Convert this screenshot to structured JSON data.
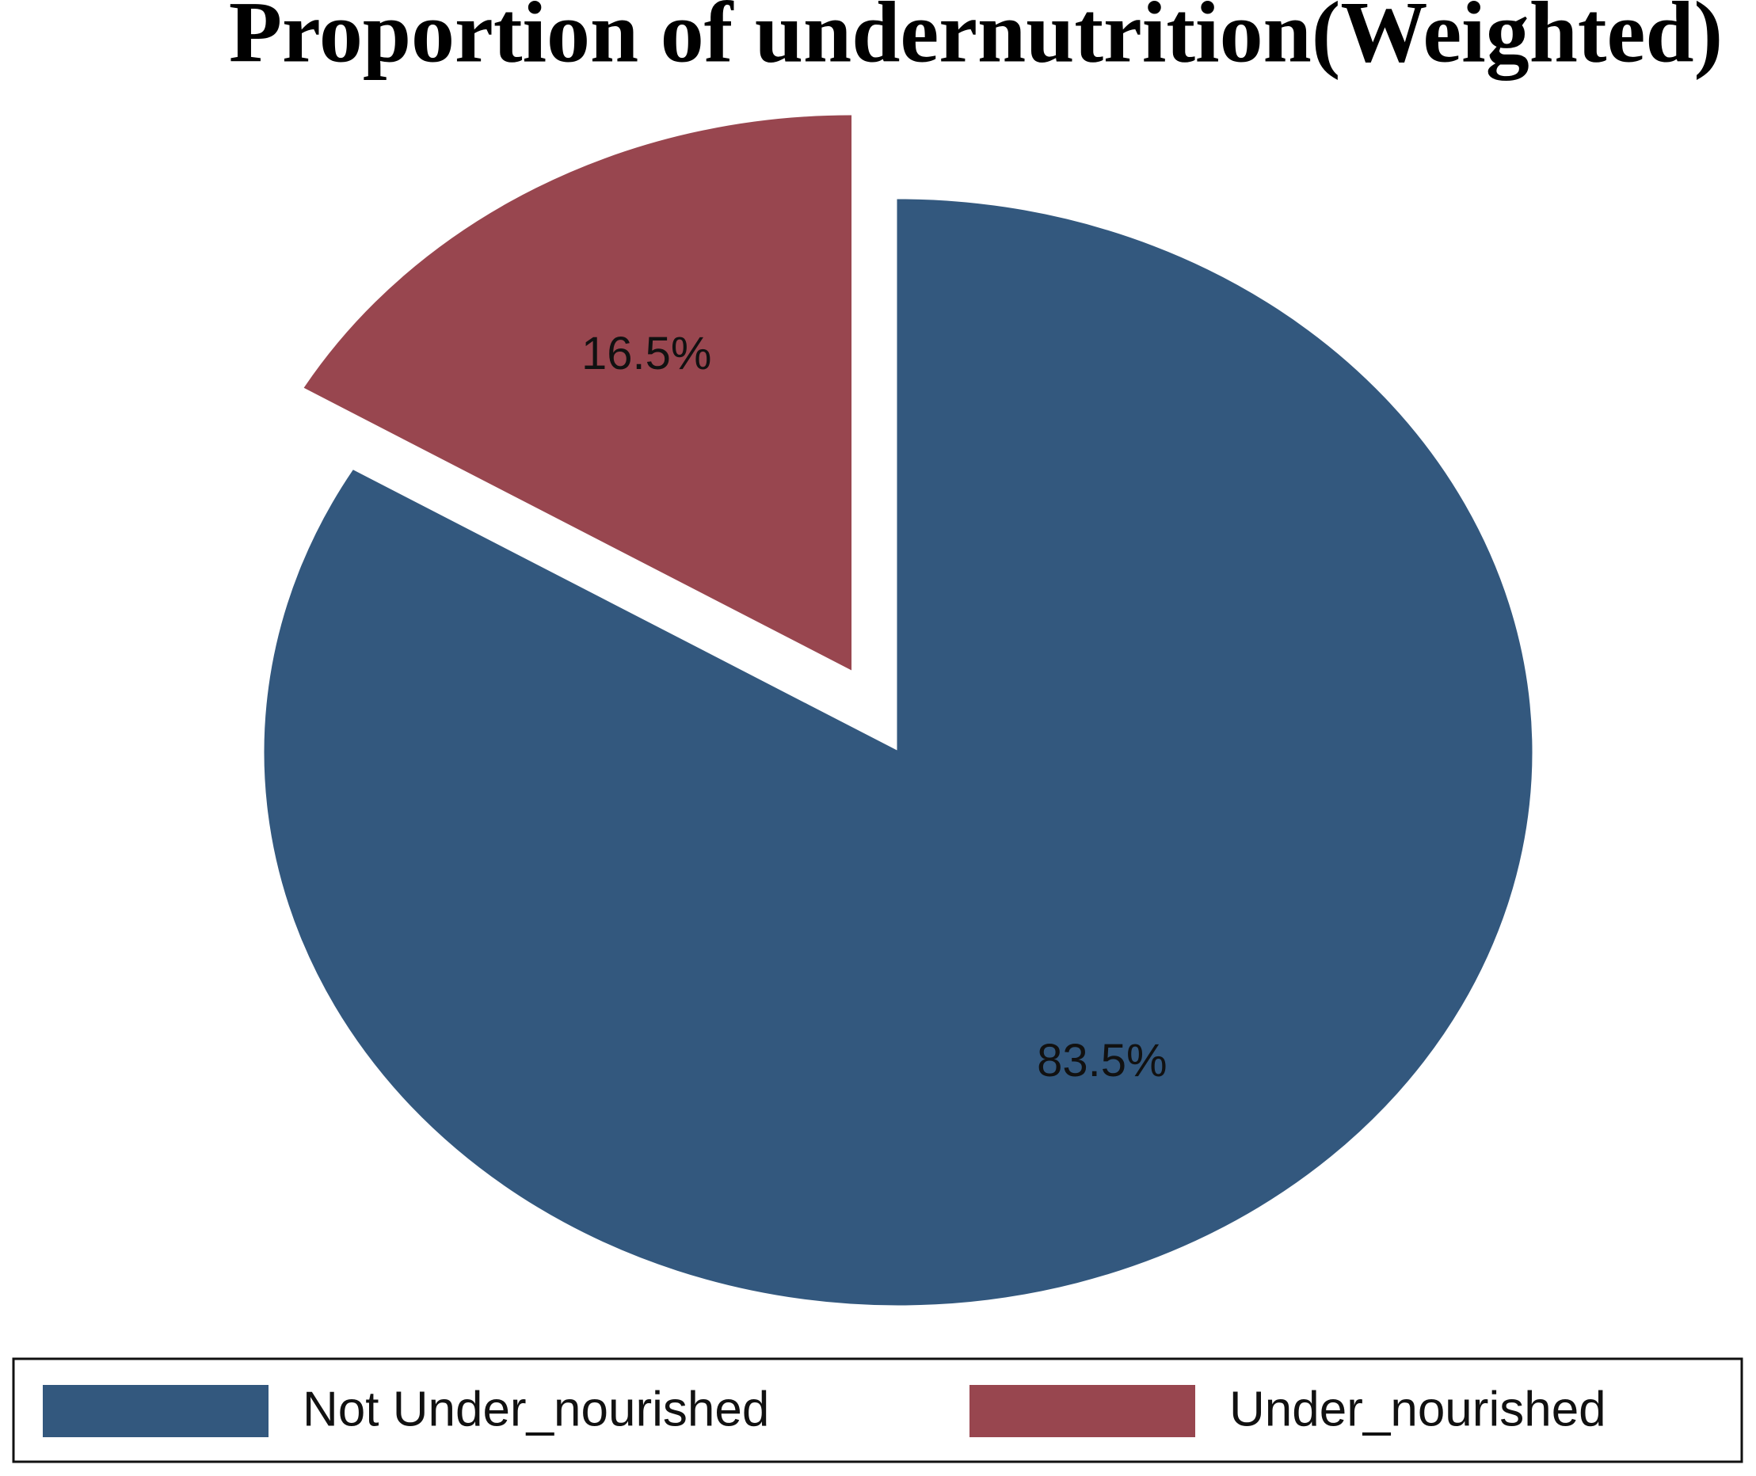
{
  "chart_data": {
    "type": "pie",
    "title": "Proportion of undernutrition(Weighted)",
    "categories": [
      "Not Under_nourished",
      "Under_nourished"
    ],
    "values": [
      83.5,
      16.5
    ],
    "value_labels": [
      "83.5%",
      "16.5%"
    ],
    "colors": [
      "#33587e",
      "#98464f"
    ],
    "explode": [
      false,
      true
    ],
    "legend": "bottom"
  }
}
